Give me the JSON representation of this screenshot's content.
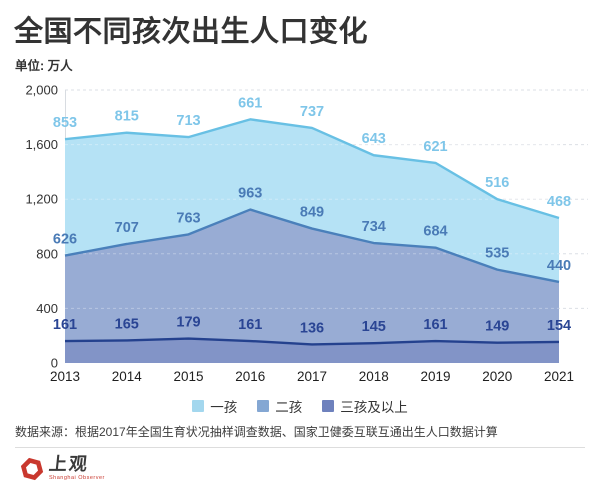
{
  "header": {
    "title": "全国不同孩次出生人口变化",
    "unit_label": "单位: 万人"
  },
  "chart_data": {
    "type": "area",
    "stacked": true,
    "title": "全国不同孩次出生人口变化",
    "ylabel": "万人",
    "x": [
      "2013",
      "2014",
      "2015",
      "2016",
      "2017",
      "2018",
      "2019",
      "2020",
      "2021"
    ],
    "series": [
      {
        "name": "一孩",
        "values": [
          853,
          815,
          713,
          661,
          737,
          643,
          621,
          516,
          468
        ],
        "fill": "#b5e2f5",
        "stroke": "#68c0e4",
        "label_color": "#7fc6e9",
        "legend_color": "#a3d7ee"
      },
      {
        "name": "二孩",
        "values": [
          626,
          707,
          763,
          963,
          849,
          734,
          684,
          535,
          440
        ],
        "fill": "#98acd4",
        "stroke": "#4a80bb",
        "label_color": "#4a7bb6",
        "legend_color": "#84a7d3"
      },
      {
        "name": "三孩及以上",
        "values": [
          161,
          165,
          179,
          161,
          136,
          145,
          161,
          149,
          154
        ],
        "fill": "#8294c7",
        "stroke": "#24418e",
        "label_color": "#2a4594",
        "legend_color": "#6e81bd"
      }
    ],
    "ylim": [
      0,
      2000
    ],
    "ytick_interval": 400,
    "yticks": [
      {
        "v": 0,
        "label": "0"
      },
      {
        "v": 400,
        "label": "400"
      },
      {
        "v": 800,
        "label": "800"
      },
      {
        "v": 1200,
        "label": "1,200"
      },
      {
        "v": 1600,
        "label": "1,600"
      },
      {
        "v": 2000,
        "label": "2,000"
      }
    ],
    "grid": "horizontal-dashed",
    "legend_position": "bottom"
  },
  "footer": {
    "source": "数据来源：根据2017年全国生育状况抽样调查数据、国家卫健委互联互通出生人口数据计算"
  },
  "logo": {
    "name": "上观",
    "subtitle": "Shanghai Observer",
    "color": "#c9382e"
  }
}
